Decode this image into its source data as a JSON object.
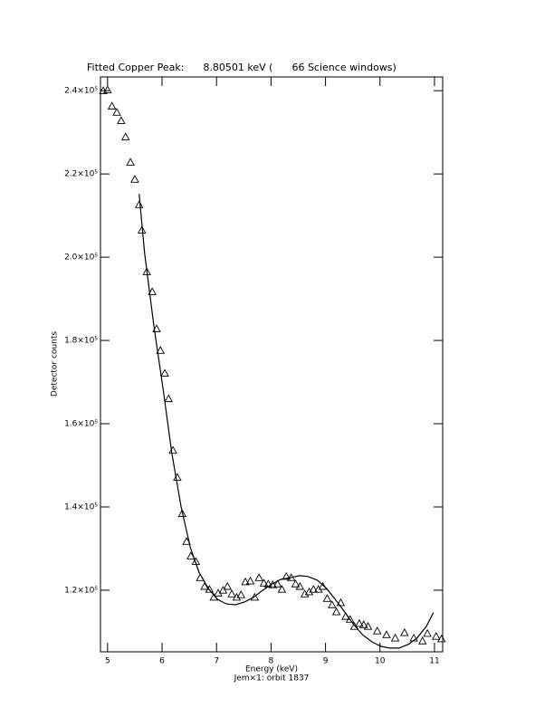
{
  "chart_data": {
    "type": "scatter",
    "title": "Fitted Copper Peak:      8.80501 keV (      66 Science windows)",
    "xlabel": "Energy (keV)",
    "subtitle": "Jem×1: orbit 1837",
    "ylabel": "Detector counts",
    "xlim": [
      4.87,
      11.15
    ],
    "ylim": [
      105200,
      243300
    ],
    "xticks": [
      5,
      6,
      7,
      8,
      9,
      10,
      11
    ],
    "yticks": [
      {
        "value": 120000,
        "label": "1.2×10⁵"
      },
      {
        "value": 140000,
        "label": "1.4×10⁵"
      },
      {
        "value": 160000,
        "label": "1.6×10⁵"
      },
      {
        "value": 180000,
        "label": "1.8×10⁵"
      },
      {
        "value": 200000,
        "label": "2.0×10⁵"
      },
      {
        "value": 220000,
        "label": "2.2×10⁵"
      },
      {
        "value": 240000,
        "label": "2.4×10⁵"
      }
    ],
    "color": "#000000",
    "series": [
      {
        "style": "triangles",
        "x": [
          4.92,
          5.0,
          5.08,
          5.17,
          5.25,
          5.33,
          5.42,
          5.5,
          5.58,
          5.63,
          5.72,
          5.82,
          5.9,
          5.97,
          6.05,
          6.12,
          6.2,
          6.28,
          6.37,
          6.45,
          6.53,
          6.62,
          6.7,
          6.78,
          6.87,
          6.95,
          7.03,
          7.12,
          7.2,
          7.28,
          7.37,
          7.45,
          7.53,
          7.62,
          7.7,
          7.78,
          7.87,
          7.95,
          8.03,
          8.12,
          8.2,
          8.28,
          8.37,
          8.45,
          8.53,
          8.62,
          8.7,
          8.78,
          8.87,
          8.95,
          9.03,
          9.12,
          9.2,
          9.28,
          9.37,
          9.45,
          9.53,
          9.62,
          9.7,
          9.78,
          9.95,
          10.12,
          10.28,
          10.45,
          10.62,
          10.78,
          10.87,
          11.03,
          11.13
        ],
        "values": [
          240000,
          240200,
          236300,
          234800,
          232800,
          228900,
          222800,
          218700,
          212600,
          206500,
          196500,
          191700,
          182800,
          177600,
          172100,
          166000,
          153600,
          147100,
          138400,
          131700,
          128200,
          126900,
          123000,
          120900,
          120200,
          118300,
          119300,
          120000,
          120900,
          119100,
          118300,
          118900,
          122000,
          122200,
          118300,
          123000,
          121700,
          121500,
          121300,
          121500,
          120200,
          123300,
          123000,
          121500,
          120900,
          119100,
          119600,
          120200,
          120200,
          120900,
          118000,
          116500,
          114800,
          117000,
          113700,
          113000,
          111300,
          112000,
          111700,
          111300,
          110200,
          109300,
          108500,
          109800,
          108500,
          107800,
          109600,
          108900,
          108300
        ]
      },
      {
        "style": "line",
        "x": [
          5.58,
          5.68,
          5.85,
          6.02,
          6.18,
          6.35,
          6.52,
          6.68,
          6.85,
          7.02,
          7.18,
          7.35,
          7.52,
          7.68,
          7.85,
          8.02,
          8.18,
          8.35,
          8.52,
          8.68,
          8.85,
          9.02,
          9.18,
          9.35,
          9.52,
          9.68,
          9.85,
          10.02,
          10.18,
          10.35,
          10.52,
          10.68,
          10.85,
          10.98
        ],
        "values": [
          215200,
          200900,
          183500,
          168300,
          152800,
          140000,
          130200,
          124300,
          120400,
          117800,
          116700,
          116500,
          117200,
          118300,
          120000,
          121500,
          122600,
          123000,
          123500,
          123300,
          122400,
          120400,
          117800,
          114800,
          111700,
          109300,
          107600,
          106500,
          106100,
          106100,
          107000,
          108500,
          111300,
          114600
        ]
      }
    ]
  }
}
